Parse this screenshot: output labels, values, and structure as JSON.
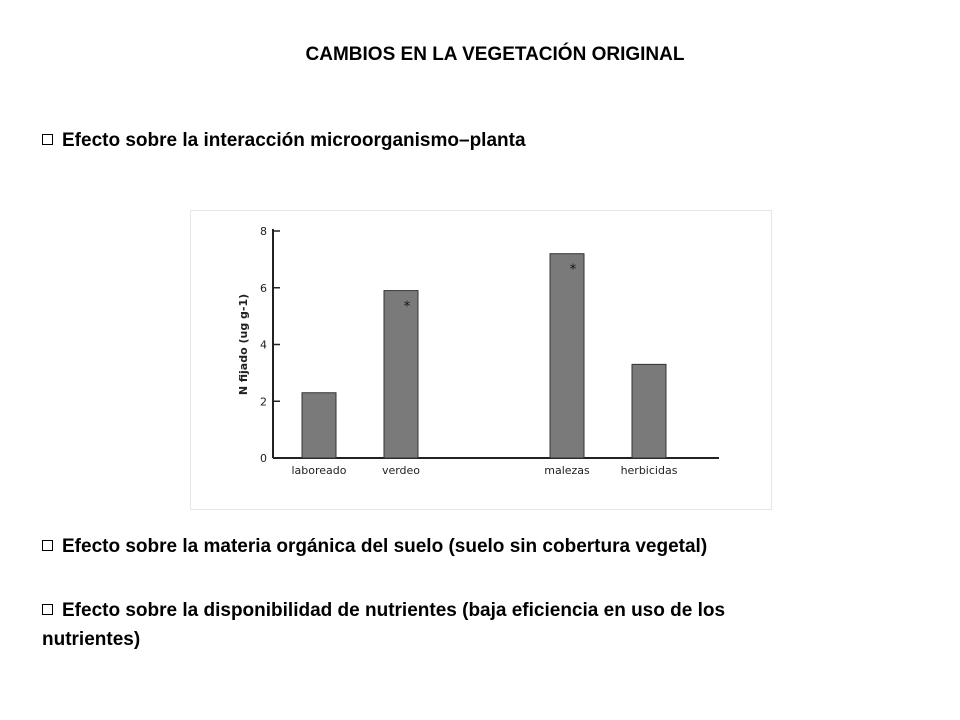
{
  "page": {
    "title": "CAMBIOS EN LA VEGETACIÓN ORIGINAL",
    "bullets": [
      "Efecto sobre la interacción microorganismo–planta",
      "Efecto sobre la materia orgánica del suelo (suelo sin cobertura vegetal)",
      "Efecto sobre la disponibilidad de nutrientes (baja eficiencia en uso de los nutrientes)"
    ]
  },
  "colors": {
    "bar": "#7a7a7a",
    "axis": "#222222"
  },
  "chart_data": {
    "type": "bar",
    "categories": [
      "laboreado",
      "verdeo",
      "malezas",
      "herbicidas"
    ],
    "values": [
      2.3,
      5.9,
      7.2,
      3.3
    ],
    "annotations": [
      "",
      "*",
      "*",
      ""
    ],
    "ylabel": "N fijado (ug g-1)",
    "xlabel": "",
    "ylim": [
      0,
      8
    ],
    "yticks": [
      0,
      2,
      4,
      6,
      8
    ],
    "grid": false
  }
}
